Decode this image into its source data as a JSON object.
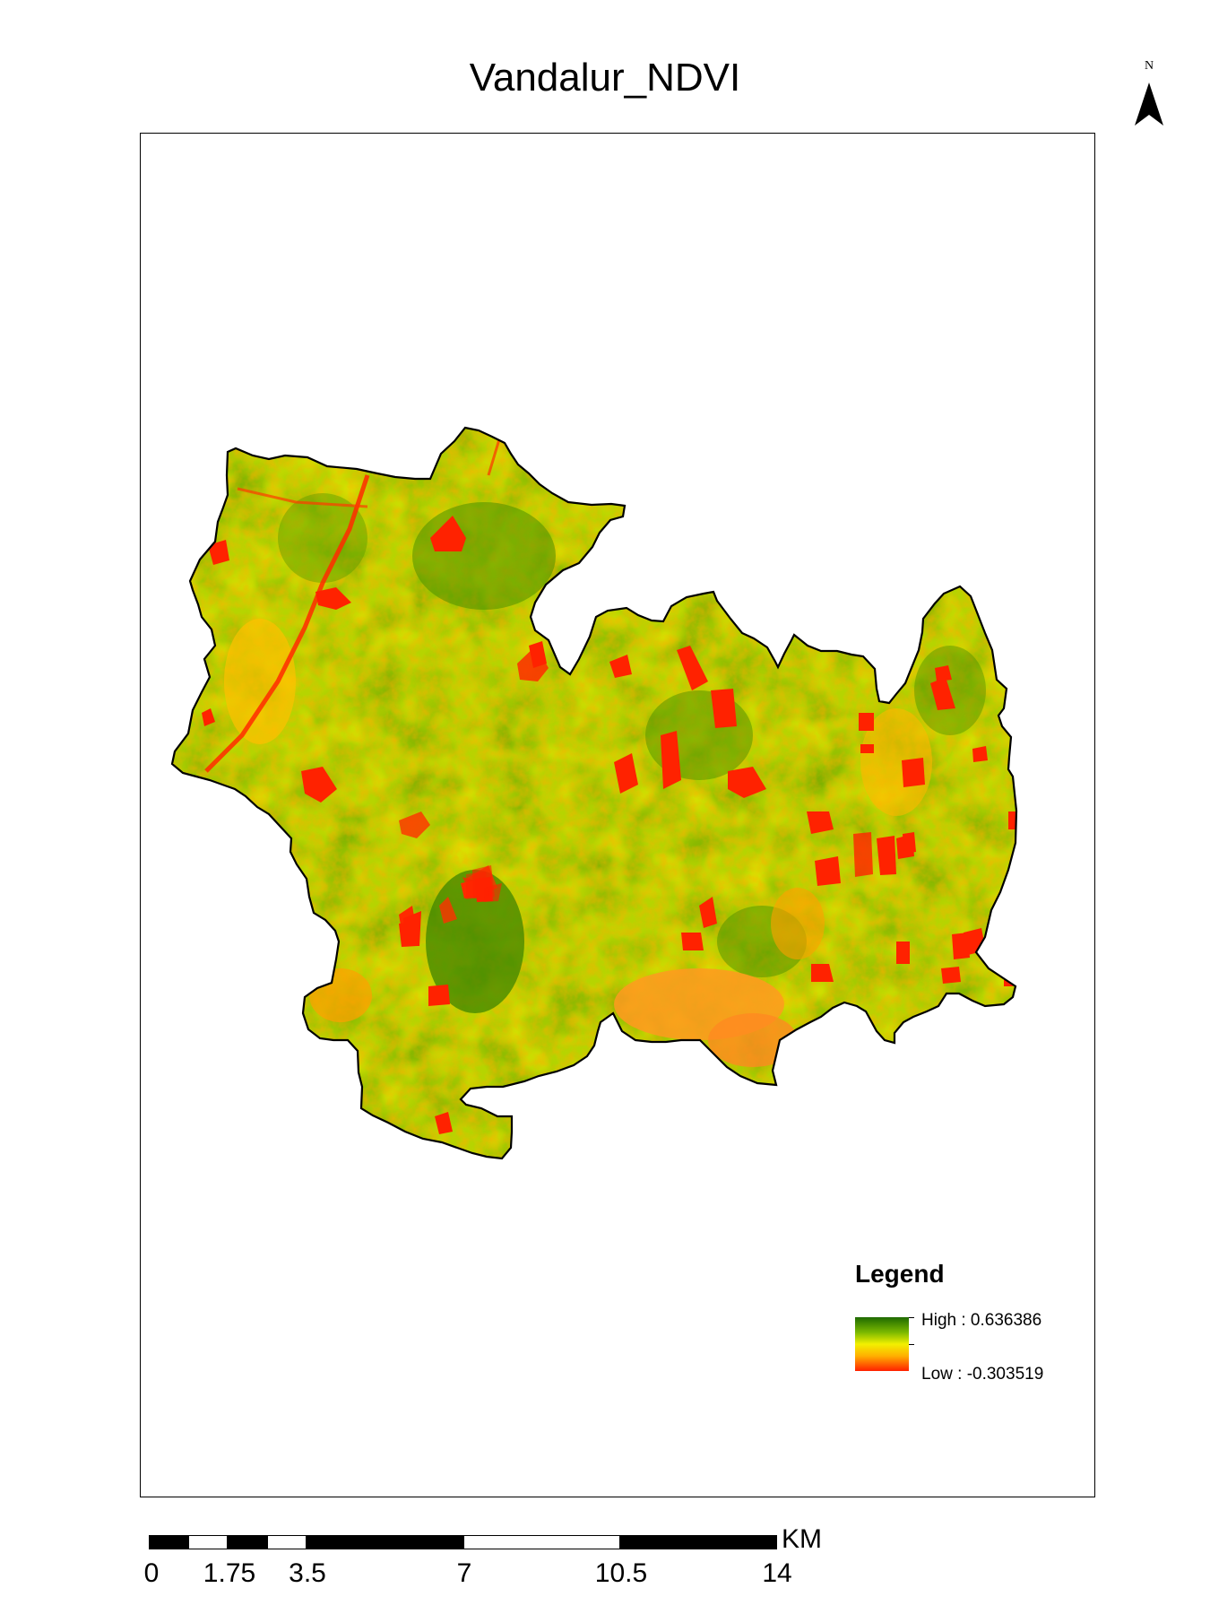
{
  "map": {
    "title": "Vandalur_NDVI",
    "north_label": "N",
    "colors": {
      "high": "#1e6a00",
      "mid_high": "#7ab800",
      "mid": "#f2f000",
      "mid_low": "#ffb000",
      "low": "#ff2000",
      "boundary": "#000000"
    }
  },
  "legend": {
    "title": "Legend",
    "high_label": "High : 0.636386",
    "low_label": "Low : -0.303519",
    "high_value": 0.636386,
    "low_value": -0.303519
  },
  "scalebar": {
    "unit": "KM",
    "labels": [
      "0",
      "1.75",
      "3.5",
      "7",
      "10.5",
      "14"
    ]
  }
}
